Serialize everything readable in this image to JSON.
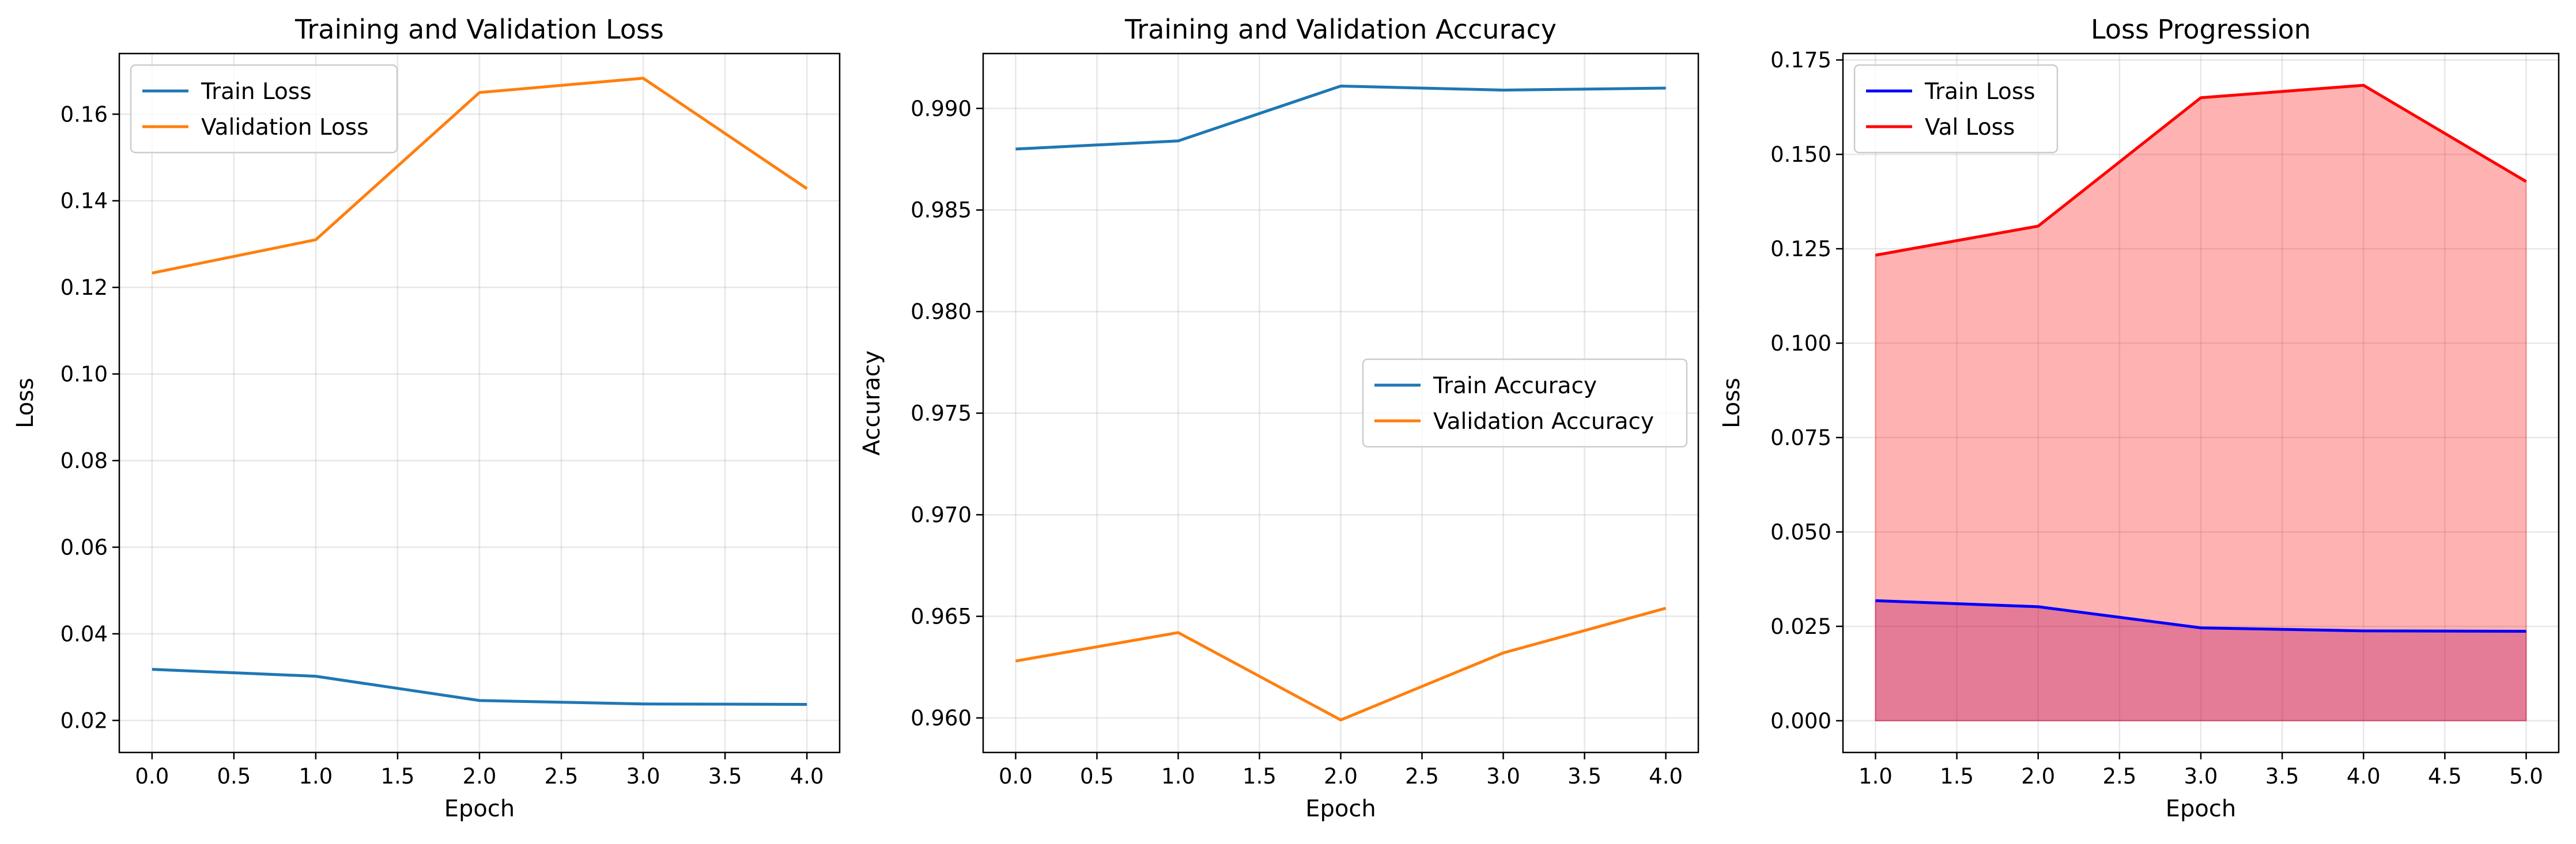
{
  "chart_data": [
    {
      "type": "line",
      "title": "Training and Validation Loss",
      "xlabel": "Epoch",
      "ylabel": "Loss",
      "xlim": [
        -0.2,
        4.2
      ],
      "ylim": [
        0.0126,
        0.174
      ],
      "xticks": [
        "0.0",
        "0.5",
        "1.0",
        "1.5",
        "2.0",
        "2.5",
        "3.0",
        "3.5",
        "4.0"
      ],
      "yticks": [
        "0.02",
        "0.04",
        "0.06",
        "0.08",
        "0.10",
        "0.12",
        "0.14",
        "0.16"
      ],
      "grid": true,
      "legend_position": "top-left",
      "series": [
        {
          "name": "Train Loss",
          "color": "#1f77b4",
          "x": [
            0,
            1,
            2,
            3,
            4
          ],
          "y": [
            0.0318,
            0.0302,
            0.0246,
            0.0238,
            0.0237
          ]
        },
        {
          "name": "Validation Loss",
          "color": "#ff7f0e",
          "x": [
            0,
            1,
            2,
            3,
            4
          ],
          "y": [
            0.1233,
            0.131,
            0.165,
            0.1683,
            0.1428
          ]
        }
      ]
    },
    {
      "type": "line",
      "title": "Training and Validation Accuracy",
      "xlabel": "Epoch",
      "ylabel": "Accuracy",
      "xlim": [
        -0.2,
        4.2
      ],
      "ylim": [
        0.9583,
        0.9927
      ],
      "xticks": [
        "0.0",
        "0.5",
        "1.0",
        "1.5",
        "2.0",
        "2.5",
        "3.0",
        "3.5",
        "4.0"
      ],
      "yticks": [
        "0.960",
        "0.965",
        "0.970",
        "0.975",
        "0.980",
        "0.985",
        "0.990"
      ],
      "grid": true,
      "legend_position": "center-right",
      "series": [
        {
          "name": "Train Accuracy",
          "color": "#1f77b4",
          "x": [
            0,
            1,
            2,
            3,
            4
          ],
          "y": [
            0.988,
            0.9884,
            0.9911,
            0.9909,
            0.991
          ]
        },
        {
          "name": "Validation Accuracy",
          "color": "#ff7f0e",
          "x": [
            0,
            1,
            2,
            3,
            4
          ],
          "y": [
            0.9628,
            0.9642,
            0.9599,
            0.9632,
            0.9654
          ]
        }
      ]
    },
    {
      "type": "area",
      "title": "Loss Progression",
      "xlabel": "Epoch",
      "ylabel": "Loss",
      "xlim": [
        0.8,
        5.2
      ],
      "ylim": [
        -0.0084,
        0.1767
      ],
      "xticks": [
        "1.0",
        "1.5",
        "2.0",
        "2.5",
        "3.0",
        "3.5",
        "4.0",
        "4.5",
        "5.0"
      ],
      "yticks": [
        "0.000",
        "0.025",
        "0.050",
        "0.075",
        "0.100",
        "0.125",
        "0.150",
        "0.175"
      ],
      "grid": true,
      "legend_position": "top-left",
      "series": [
        {
          "name": "Train Loss",
          "color": "#0000ff",
          "fill": "#800080",
          "x": [
            1,
            2,
            3,
            4,
            5
          ],
          "y": [
            0.0318,
            0.0302,
            0.0246,
            0.0238,
            0.0237
          ]
        },
        {
          "name": "Val Loss",
          "color": "#ff0000",
          "fill": "#ff0000",
          "x": [
            1,
            2,
            3,
            4,
            5
          ],
          "y": [
            0.1233,
            0.131,
            0.165,
            0.1683,
            0.1428
          ]
        }
      ]
    }
  ]
}
